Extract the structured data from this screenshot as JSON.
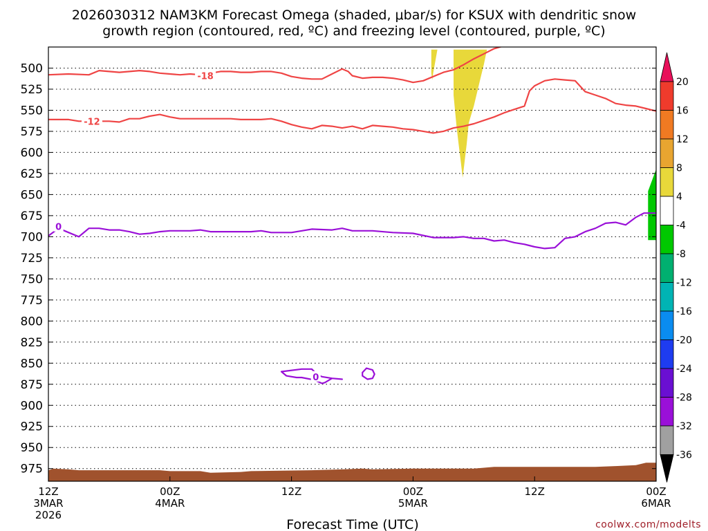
{
  "chart_data": {
    "type": "time-height cross section",
    "title_line1": "2026030312 NAM3KM Forecast Omega (shaded, μbar/s) for KSUX with dendritic snow",
    "title_line2": "growth region (contoured, red, ºC) and freezing level (contoured, purple, ºC)",
    "xlabel": "Forecast Time (UTC)",
    "watermark": "coolwx.com/modelts",
    "x_range_hours": [
      0,
      60
    ],
    "y_range_mb": [
      475,
      990
    ],
    "y_ticks": [
      "500",
      "525",
      "550",
      "575",
      "600",
      "625",
      "650",
      "675",
      "700",
      "725",
      "750",
      "775",
      "800",
      "825",
      "850",
      "875",
      "900",
      "925",
      "950",
      "975"
    ],
    "x_ticks": [
      {
        "h": 0,
        "lines": [
          "12Z",
          "3MAR",
          "2026"
        ]
      },
      {
        "h": 12,
        "lines": [
          "00Z",
          "4MAR"
        ]
      },
      {
        "h": 24,
        "lines": [
          "12Z"
        ]
      },
      {
        "h": 36,
        "lines": [
          "00Z",
          "5MAR"
        ]
      },
      {
        "h": 48,
        "lines": [
          "12Z"
        ]
      },
      {
        "h": 60,
        "lines": [
          "00Z",
          "6MAR"
        ]
      }
    ],
    "colorbar": {
      "labels": [
        "20",
        "16",
        "12",
        "8",
        "4",
        "-4",
        "-8",
        "-12",
        "-16",
        "-20",
        "-24",
        "-28",
        "-32",
        "-36"
      ],
      "colors": [
        "#e8105a",
        "#ef3b2c",
        "#f07a22",
        "#e8a530",
        "#e8d83a",
        "#ffffff",
        "#00c800",
        "#00b070",
        "#00b4b4",
        "#0a8cf0",
        "#1e3cf0",
        "#6a0fd2",
        "#9a10d8",
        "#a0a0a0",
        "#000000"
      ]
    },
    "series": [
      {
        "name": "-18 C",
        "color": "#ef4444",
        "label": "-18",
        "label_at": [
          15.5,
          509
        ],
        "points": [
          [
            0,
            508
          ],
          [
            2,
            507
          ],
          [
            4,
            508
          ],
          [
            5,
            503
          ],
          [
            6,
            504
          ],
          [
            7,
            505
          ],
          [
            8,
            504
          ],
          [
            9,
            503
          ],
          [
            10,
            504
          ],
          [
            11,
            506
          ],
          [
            12,
            507
          ],
          [
            13,
            508
          ],
          [
            14,
            507
          ],
          [
            15,
            508
          ],
          [
            16,
            506
          ],
          [
            17,
            504
          ],
          [
            18,
            504
          ],
          [
            19,
            505
          ],
          [
            20,
            505
          ],
          [
            21,
            504
          ],
          [
            22,
            504
          ],
          [
            23,
            506
          ],
          [
            24,
            510
          ],
          [
            25,
            512
          ],
          [
            26,
            513
          ],
          [
            27,
            513
          ],
          [
            28,
            507
          ],
          [
            29,
            501
          ],
          [
            29.6,
            504
          ],
          [
            30,
            509
          ],
          [
            31,
            512
          ],
          [
            32,
            511
          ],
          [
            33,
            511
          ],
          [
            34,
            512
          ],
          [
            35,
            514
          ],
          [
            36,
            517
          ],
          [
            37,
            515
          ],
          [
            38,
            510
          ],
          [
            39,
            505
          ],
          [
            40,
            502
          ],
          [
            41,
            496
          ],
          [
            42,
            489
          ],
          [
            43,
            483
          ],
          [
            44,
            477
          ],
          [
            46,
            470
          ]
        ]
      },
      {
        "name": "-12 C",
        "color": "#ef4444",
        "label": "-12",
        "label_at": [
          4.3,
          563
        ],
        "points": [
          [
            0,
            561
          ],
          [
            1,
            561
          ],
          [
            2,
            561
          ],
          [
            3,
            563
          ],
          [
            6,
            563
          ],
          [
            7,
            564
          ],
          [
            8,
            560
          ],
          [
            9,
            560
          ],
          [
            10,
            557
          ],
          [
            11,
            555
          ],
          [
            12,
            558
          ],
          [
            13,
            560
          ],
          [
            18,
            560
          ],
          [
            19,
            561
          ],
          [
            21,
            561
          ],
          [
            22,
            560
          ],
          [
            23,
            563
          ],
          [
            24,
            567
          ],
          [
            25,
            570
          ],
          [
            26,
            572
          ],
          [
            27,
            568
          ],
          [
            28,
            569
          ],
          [
            29,
            571
          ],
          [
            30,
            569
          ],
          [
            31,
            572
          ],
          [
            32,
            568
          ],
          [
            33,
            569
          ],
          [
            34,
            570
          ],
          [
            35,
            572
          ],
          [
            36,
            573
          ],
          [
            37,
            575
          ],
          [
            38,
            577
          ],
          [
            39,
            575
          ],
          [
            40,
            571
          ],
          [
            41,
            569
          ],
          [
            42,
            566
          ],
          [
            43,
            562
          ],
          [
            44,
            558
          ],
          [
            45,
            553
          ],
          [
            46,
            549
          ],
          [
            47,
            545
          ],
          [
            47.5,
            527
          ],
          [
            48,
            521
          ],
          [
            49,
            515
          ],
          [
            50,
            513
          ],
          [
            51,
            514
          ],
          [
            52,
            515
          ],
          [
            53,
            528
          ],
          [
            54,
            532
          ],
          [
            55,
            536
          ],
          [
            56,
            542
          ],
          [
            57,
            544
          ],
          [
            58,
            545
          ],
          [
            59,
            548
          ],
          [
            60,
            551
          ]
        ]
      },
      {
        "name": "0 C freezing level",
        "color": "#9a10d8",
        "label": "0",
        "label_at": [
          1.0,
          688
        ],
        "points": [
          [
            0,
            699
          ],
          [
            1,
            690
          ],
          [
            2,
            695
          ],
          [
            3,
            700
          ],
          [
            4,
            690
          ],
          [
            5,
            690
          ],
          [
            6,
            692
          ],
          [
            7,
            692
          ],
          [
            8,
            694
          ],
          [
            9,
            697
          ],
          [
            10,
            696
          ],
          [
            11,
            694
          ],
          [
            12,
            693
          ],
          [
            14,
            693
          ],
          [
            15,
            692
          ],
          [
            16,
            694
          ],
          [
            18,
            694
          ],
          [
            20,
            694
          ],
          [
            21,
            693
          ],
          [
            22,
            695
          ],
          [
            24,
            695
          ],
          [
            26,
            691
          ],
          [
            28,
            692
          ],
          [
            29,
            690
          ],
          [
            30,
            693
          ],
          [
            32,
            693
          ],
          [
            34,
            695
          ],
          [
            36,
            696
          ],
          [
            38,
            701
          ],
          [
            40,
            701
          ],
          [
            41,
            700
          ],
          [
            42,
            702
          ],
          [
            43,
            702
          ],
          [
            44,
            705
          ],
          [
            45,
            704
          ],
          [
            46,
            707
          ],
          [
            47,
            709
          ],
          [
            48,
            712
          ],
          [
            49,
            714
          ],
          [
            50,
            713
          ],
          [
            51,
            702
          ],
          [
            52,
            700
          ],
          [
            53,
            694
          ],
          [
            54,
            690
          ],
          [
            55,
            684
          ],
          [
            56,
            683
          ],
          [
            57,
            686
          ],
          [
            58,
            677
          ],
          [
            58.8,
            672
          ],
          [
            60,
            672
          ]
        ]
      },
      {
        "name": "0 C loop near 850-875 mb",
        "color": "#9a10d8",
        "label": "0",
        "label_at": [
          26.4,
          866
        ],
        "points": [
          [
            23,
            860
          ],
          [
            25,
            857
          ],
          [
            26,
            857
          ],
          [
            26.5,
            863
          ],
          [
            27,
            866
          ],
          [
            28,
            868
          ],
          [
            29,
            869
          ],
          [
            28,
            868
          ],
          [
            27.3,
            873
          ],
          [
            27,
            874
          ],
          [
            26.3,
            870
          ],
          [
            25,
            867
          ],
          [
            24.5,
            867
          ],
          [
            23.5,
            865
          ],
          [
            23,
            860
          ]
        ]
      },
      {
        "name": "0 C small loop",
        "color": "#9a10d8",
        "label": "",
        "points": [
          [
            31.4,
            856
          ],
          [
            32,
            858
          ],
          [
            32.2,
            863
          ],
          [
            32,
            868
          ],
          [
            31.5,
            869
          ],
          [
            31,
            865
          ],
          [
            31,
            861
          ],
          [
            31.4,
            856
          ]
        ]
      }
    ],
    "shaded": [
      {
        "name": "omega +4 to +8 near 500 mb",
        "color": "#e8d83a",
        "points": [
          [
            37.8,
            478
          ],
          [
            38.4,
            478
          ],
          [
            38.2,
            492
          ],
          [
            38.0,
            505
          ],
          [
            37.9,
            514
          ],
          [
            37.8,
            506
          ]
        ]
      },
      {
        "name": "omega +4 to +8 upper plume",
        "color": "#e8d83a",
        "points": [
          [
            40,
            478
          ],
          [
            43.3,
            478
          ],
          [
            43,
            495
          ],
          [
            42.5,
            520
          ],
          [
            42,
            545
          ],
          [
            41.5,
            565
          ],
          [
            41.3,
            590
          ],
          [
            41.1,
            610
          ],
          [
            40.9,
            630
          ],
          [
            40.7,
            610
          ],
          [
            40.5,
            590
          ],
          [
            40.3,
            570
          ],
          [
            40.1,
            545
          ],
          [
            40,
            532
          ],
          [
            40,
            478
          ]
        ]
      },
      {
        "name": "omega -4 to -8 near 675 mb",
        "color": "#00c800",
        "points": [
          [
            60,
            620
          ],
          [
            59.2,
            646
          ],
          [
            59.2,
            704
          ],
          [
            60,
            704
          ]
        ]
      }
    ],
    "terrain": {
      "color": "#a0522d",
      "points": [
        [
          0,
          977
        ],
        [
          0.5,
          975
        ],
        [
          2,
          976
        ],
        [
          3,
          977
        ],
        [
          6,
          977
        ],
        [
          11,
          977
        ],
        [
          12,
          978
        ],
        [
          15,
          978
        ],
        [
          16,
          980
        ],
        [
          19,
          979
        ],
        [
          20,
          978
        ],
        [
          26,
          977
        ],
        [
          29,
          976
        ],
        [
          31,
          975
        ],
        [
          32,
          976
        ],
        [
          36,
          975
        ],
        [
          42,
          975
        ],
        [
          43,
          974
        ],
        [
          44,
          973
        ],
        [
          54,
          973
        ],
        [
          56,
          972
        ],
        [
          58,
          971
        ],
        [
          59,
          968
        ],
        [
          60,
          968
        ]
      ]
    }
  }
}
